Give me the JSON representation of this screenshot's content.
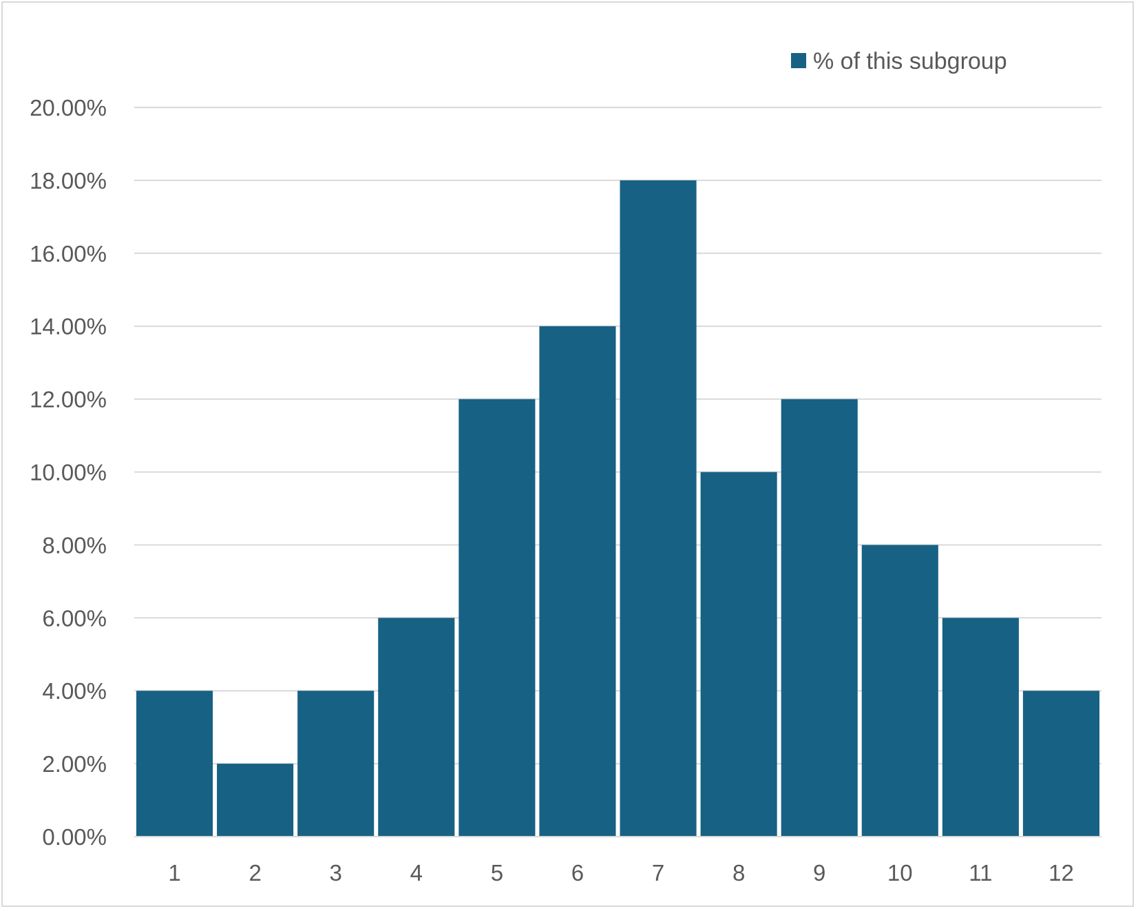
{
  "chart_data": {
    "type": "bar",
    "categories": [
      "1",
      "2",
      "3",
      "4",
      "5",
      "6",
      "7",
      "8",
      "9",
      "10",
      "11",
      "12"
    ],
    "series": [
      {
        "name": "% of this subgroup",
        "values": [
          4,
          2,
          4,
          6,
          12,
          14,
          18,
          10,
          12,
          8,
          6,
          4
        ],
        "color": "#176184"
      }
    ],
    "yticks": [
      "0.00%",
      "2.00%",
      "4.00%",
      "6.00%",
      "8.00%",
      "10.00%",
      "12.00%",
      "14.00%",
      "16.00%",
      "18.00%",
      "20.00%"
    ],
    "ylim": [
      0,
      20
    ],
    "grid": true,
    "legend_position": "top-right",
    "colors": {
      "grid": "#d9d9d9",
      "axis": "#d9d9d9",
      "text": "#595959",
      "bar": "#176184"
    }
  }
}
